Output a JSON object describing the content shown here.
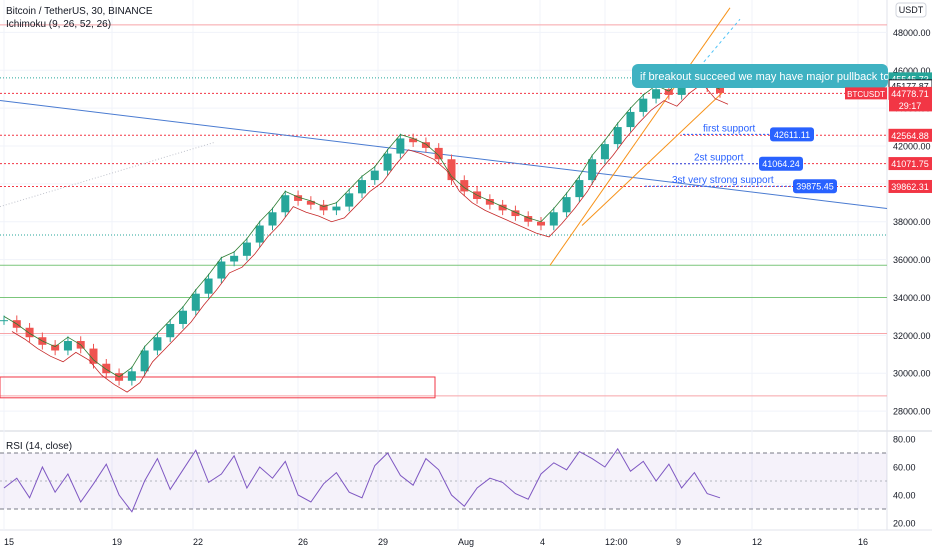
{
  "header": {
    "symbol": "Bitcoin / TetherUS, 30, BINANCE",
    "indicator": "Ichimoku (9, 26, 52, 26)",
    "currency_button": "USDT"
  },
  "rsi": {
    "label": "RSI (14, close)",
    "overbought": 70,
    "oversold": 30,
    "mid": 50,
    "axis_ticks": [
      80,
      60,
      40,
      20
    ]
  },
  "chart_data": [
    {
      "type": "line",
      "title": "",
      "series": [
        {
          "values": [
            32800,
            32400,
            31900,
            31500,
            31200,
            31700,
            31300,
            30500,
            30000,
            29600,
            30100,
            31200,
            31900,
            32600,
            33300,
            34200,
            35000,
            35900,
            36200,
            36900,
            37800,
            38500,
            39400,
            39100,
            38900,
            38600,
            38800,
            39500,
            40200,
            40700,
            41600,
            42400,
            42200,
            41900,
            41300,
            40200,
            39600,
            39200,
            38900,
            38600,
            38300,
            38000,
            37800,
            38500,
            39300,
            40200,
            41300,
            42100,
            43000,
            43800,
            44500,
            45000,
            44700,
            45400,
            45900,
            45100,
            44800
          ]
        }
      ],
      "ylim": [
        27000,
        49500
      ],
      "y_ticks": [
        48000,
        46000,
        44000,
        42000,
        40000,
        38000,
        36000,
        34000,
        32000,
        30000,
        28000
      ],
      "x_ticks": [
        "15",
        "19",
        "22",
        "26",
        "29",
        "Aug",
        "4",
        "12:00",
        "9",
        "12",
        "16"
      ],
      "price_labels": [
        {
          "value": 45545.73,
          "text": "45545.73",
          "color": "#26a69a"
        },
        {
          "value": 45177.87,
          "text": "45177.87",
          "color": "#131722"
        },
        {
          "value": 44778.71,
          "text": "44778.71",
          "color": "#f23645"
        },
        {
          "value": 42564.88,
          "text": "42564.88",
          "color": "#f23645"
        },
        {
          "value": 41071.75,
          "text": "41071.75",
          "color": "#f23645"
        },
        {
          "value": 39862.31,
          "text": "39862.31",
          "color": "#f23645"
        }
      ],
      "last_price_tag": {
        "symbol": "BTCUSDT",
        "countdown": "29:17"
      },
      "support_levels": [
        {
          "label": "first support",
          "value": 42611.11,
          "text": "42611.11"
        },
        {
          "label": "2st support",
          "value": 41064.24,
          "text": "41064.24"
        },
        {
          "label": "3st very strong support",
          "value": 39875.45,
          "text": "39875.45"
        }
      ],
      "annotation": "if breakout succeed    we may have major pullback to",
      "colors": {
        "up": "#26a69a",
        "down": "#ef5350",
        "trend": "#4a7bd1",
        "channel": "#f7931a",
        "level": "#f23645",
        "support": "#2962ff"
      }
    },
    {
      "type": "line",
      "title": "",
      "series": [
        {
          "values": [
            45,
            52,
            38,
            60,
            42,
            55,
            35,
            48,
            62,
            40,
            28,
            50,
            66,
            44,
            58,
            72,
            49,
            55,
            68,
            45,
            60,
            52,
            64,
            40,
            35,
            48,
            56,
            42,
            38,
            61,
            70,
            54,
            47,
            66,
            58,
            40,
            32,
            45,
            52,
            49,
            41,
            37,
            55,
            63,
            58,
            71,
            66,
            60,
            73,
            57,
            64,
            50,
            62,
            45,
            56,
            41,
            38
          ]
        }
      ],
      "ylim": [
        15,
        85
      ]
    }
  ]
}
